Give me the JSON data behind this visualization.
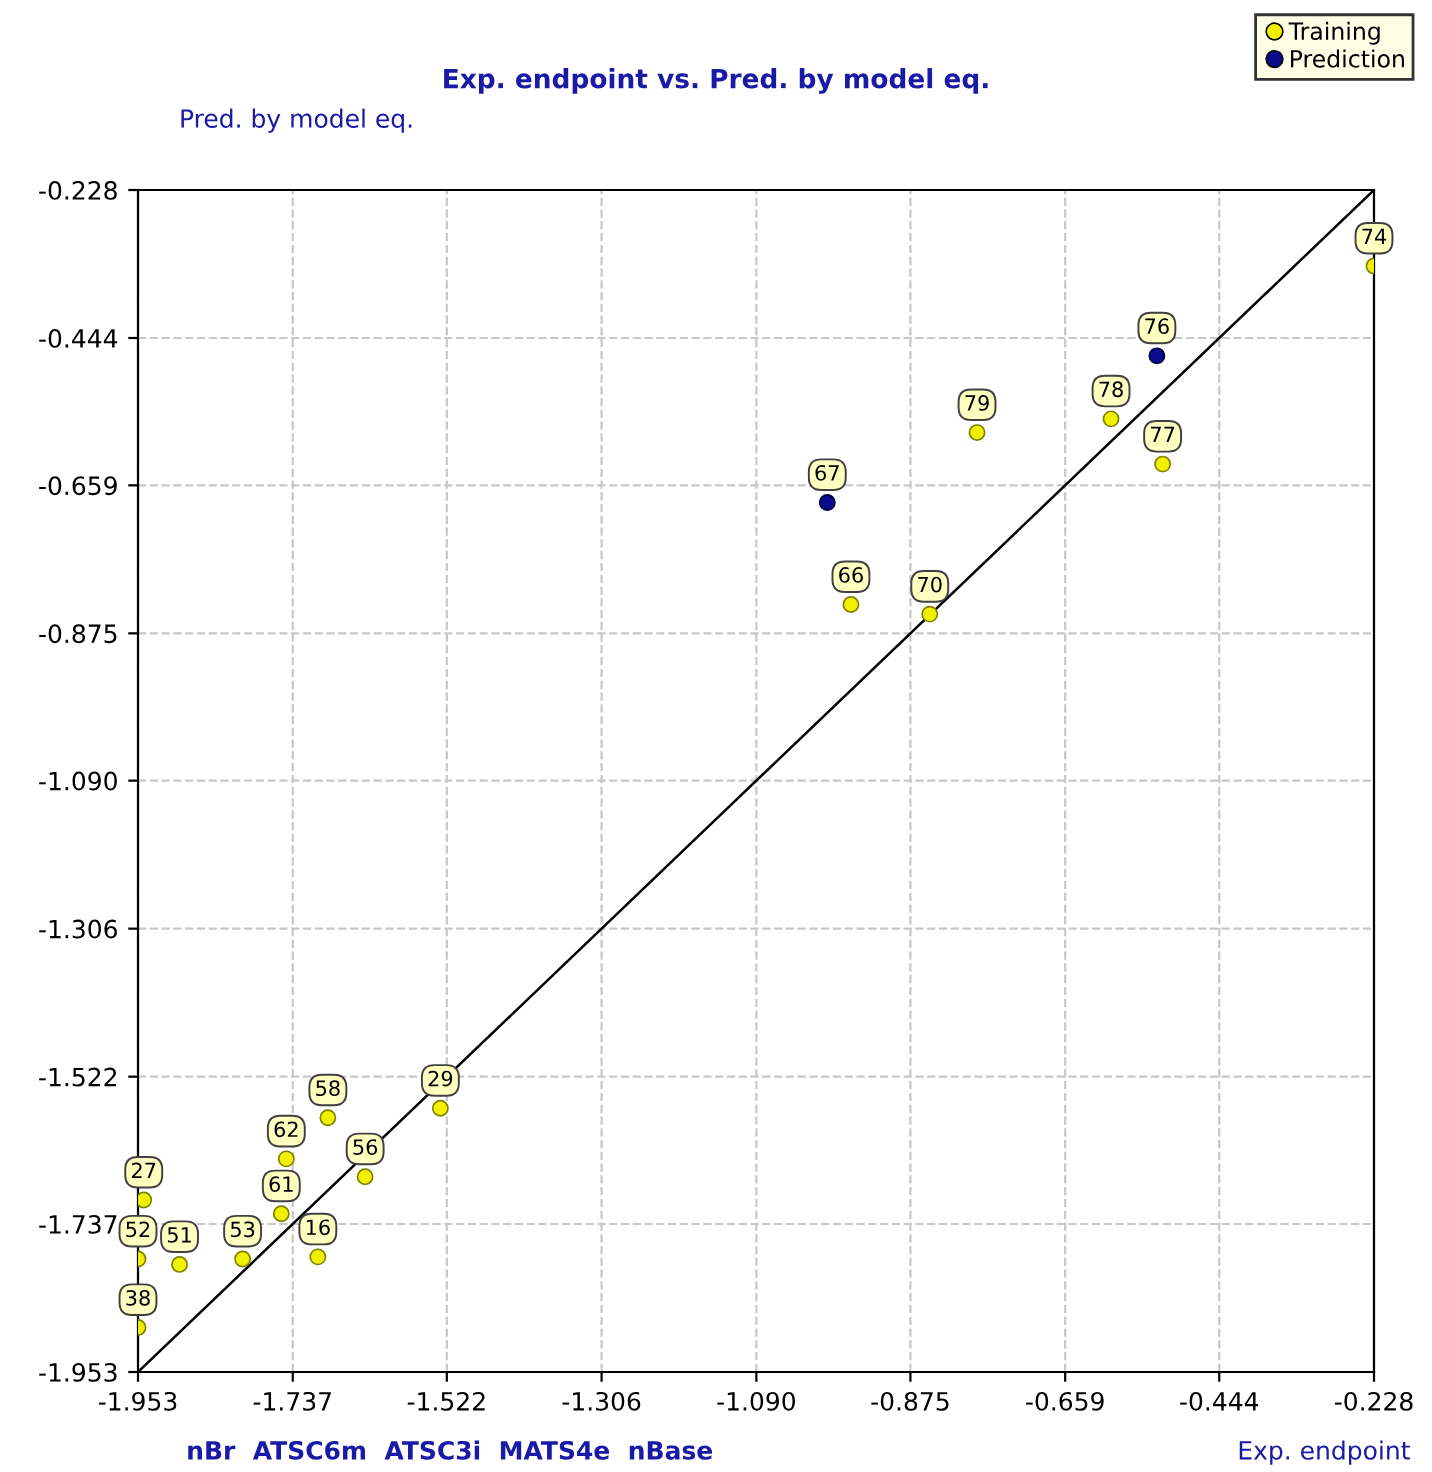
{
  "chart_data": {
    "type": "scatter",
    "title": "Exp. endpoint vs. Pred. by model eq.",
    "xlabel": "Exp. endpoint",
    "ylabel": "Pred. by model eq.",
    "xlim": [
      -1.953,
      -0.228
    ],
    "ylim": [
      -1.953,
      -0.228
    ],
    "xticks": [
      -1.953,
      -1.737,
      -1.522,
      -1.306,
      {
        "value": -1.09,
        "label": "-1.090"
      },
      -0.875,
      -0.659,
      -0.444,
      -0.228
    ],
    "yticks": [
      -1.953,
      -1.737,
      -1.522,
      -1.306,
      {
        "value": -1.09,
        "label": "-1.090"
      },
      -0.875,
      -0.659,
      -0.444,
      -0.228
    ],
    "grid": true,
    "legend": "top right",
    "marker": "circle",
    "series": [
      {
        "name": "Training",
        "color": "#f0f000",
        "x": [
          -0.228,
          -0.595,
          -0.523,
          -0.782,
          -0.958,
          -0.848,
          -1.531,
          -1.688,
          -1.746,
          -1.636,
          -1.945,
          -1.753,
          -1.702,
          -1.953,
          -1.895,
          -1.807,
          -1.953
        ],
        "values": [
          -0.339,
          -0.562,
          -0.628,
          -0.582,
          -0.833,
          -0.847,
          -1.568,
          -1.582,
          -1.642,
          -1.668,
          -1.702,
          -1.722,
          -1.785,
          -1.788,
          -1.796,
          -1.788,
          -1.888
        ]
      },
      {
        "name": "Prediction",
        "color": "#0a0a8c",
        "x": [
          -0.531,
          -0.991
        ],
        "values": [
          -0.47,
          -0.684
        ]
      },
      {
        "type": "line",
        "color": "#000000",
        "x": [
          -1.953,
          -0.228
        ],
        "values": [
          -1.953,
          -0.228
        ],
        "marker": "none"
      }
    ],
    "annotations": [
      {
        "text": "74",
        "x": -0.228,
        "y": -0.339
      },
      {
        "text": "78",
        "x": -0.595,
        "y": -0.562
      },
      {
        "text": "77",
        "x": -0.523,
        "y": -0.628
      },
      {
        "text": "79",
        "x": -0.782,
        "y": -0.582
      },
      {
        "text": "66",
        "x": -0.958,
        "y": -0.833
      },
      {
        "text": "70",
        "x": -0.848,
        "y": -0.847
      },
      {
        "text": "29",
        "x": -1.531,
        "y": -1.568
      },
      {
        "text": "58",
        "x": -1.688,
        "y": -1.582
      },
      {
        "text": "62",
        "x": -1.746,
        "y": -1.642
      },
      {
        "text": "56",
        "x": -1.636,
        "y": -1.668
      },
      {
        "text": "27",
        "x": -1.945,
        "y": -1.702
      },
      {
        "text": "61",
        "x": -1.753,
        "y": -1.722
      },
      {
        "text": "16",
        "x": -1.702,
        "y": -1.785
      },
      {
        "text": "52",
        "x": -1.953,
        "y": -1.788
      },
      {
        "text": "51",
        "x": -1.895,
        "y": -1.796
      },
      {
        "text": "53",
        "x": -1.807,
        "y": -1.788
      },
      {
        "text": "38",
        "x": -1.953,
        "y": -1.888
      },
      {
        "text": "76",
        "x": -0.531,
        "y": -0.47
      },
      {
        "text": "67",
        "x": -0.991,
        "y": -0.684
      },
      "nBr  ATSC6m  ATSC3i  MATS4e  nBase"
    ]
  }
}
